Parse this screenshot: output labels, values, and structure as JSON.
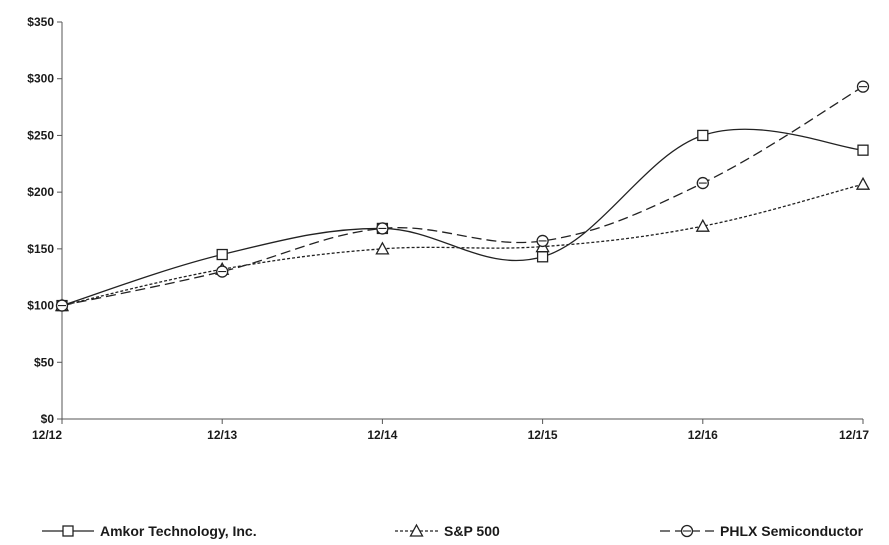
{
  "chart_data": {
    "type": "line",
    "title": "",
    "xlabel": "",
    "ylabel": "",
    "categories": [
      "12/12",
      "12/13",
      "12/14",
      "12/15",
      "12/16",
      "12/17"
    ],
    "ylim": [
      0,
      350
    ],
    "yticks": [
      0,
      50,
      100,
      150,
      200,
      250,
      300,
      350
    ],
    "ytick_labels": [
      "$0",
      "$50",
      "$100",
      "$150",
      "$200",
      "$250",
      "$300",
      "$350"
    ],
    "grid": false,
    "legend_position": "bottom",
    "series": [
      {
        "name": "Amkor Technology, Inc.",
        "values": [
          100,
          145,
          168,
          143,
          250,
          237
        ],
        "marker": "square",
        "dash": "solid",
        "color": "#222222"
      },
      {
        "name": "S&P 500",
        "values": [
          100,
          132,
          150,
          152,
          170,
          207
        ],
        "marker": "triangle",
        "dash": "dotted",
        "color": "#222222"
      },
      {
        "name": "PHLX Semiconductor",
        "values": [
          100,
          130,
          168,
          157,
          208,
          293
        ],
        "marker": "circle",
        "dash": "dashed",
        "color": "#222222"
      }
    ]
  }
}
